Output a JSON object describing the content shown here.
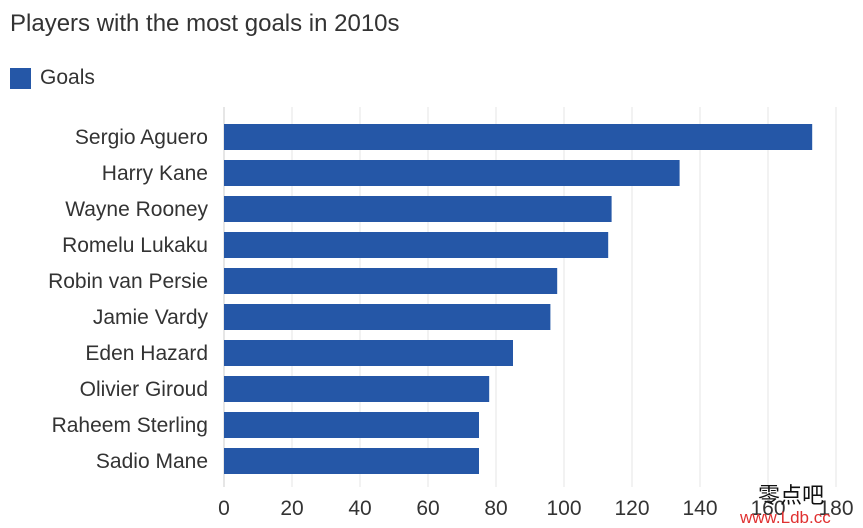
{
  "chart_data": {
    "type": "bar",
    "orientation": "horizontal",
    "title": "Players with the most goals in 2010s",
    "series": [
      {
        "name": "Goals",
        "color": "#2557a7",
        "values": [
          173,
          134,
          114,
          113,
          98,
          96,
          85,
          78,
          75,
          75
        ]
      }
    ],
    "categories": [
      "Sergio Aguero",
      "Harry Kane",
      "Wayne Rooney",
      "Romelu Lukaku",
      "Robin van Persie",
      "Jamie Vardy",
      "Eden Hazard",
      "Olivier Giroud",
      "Raheem Sterling",
      "Sadio Mane"
    ],
    "xlim": [
      0,
      180
    ],
    "xticks": [
      0,
      20,
      40,
      60,
      80,
      100,
      120,
      140,
      160,
      180
    ],
    "grid": true,
    "legend_position": "top-left"
  },
  "watermark": {
    "text_cn": "零点吧",
    "url": "www.Ldb.cc"
  }
}
